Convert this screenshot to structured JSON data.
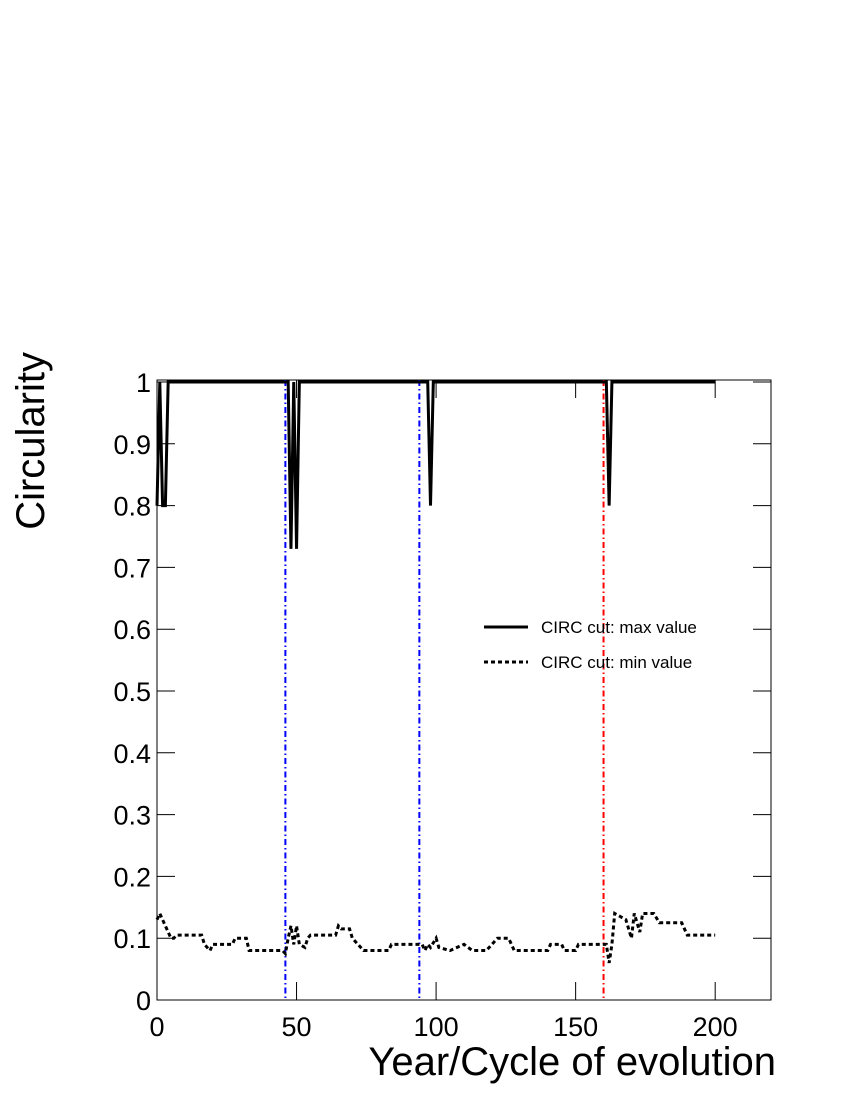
{
  "chart_data": {
    "type": "line",
    "y_label": "Circularity",
    "x_label": "Year/Cycle of evolution",
    "xlim": [
      0,
      220
    ],
    "ylim": [
      0,
      1
    ],
    "xticks": [
      0,
      50,
      100,
      150,
      200
    ],
    "yticks": [
      0,
      0.1,
      0.2,
      0.3,
      0.4,
      0.5,
      0.6,
      0.7,
      0.8,
      0.9,
      1
    ],
    "legend": "right",
    "series": [
      {
        "name": "CIRC cut: max value",
        "color": "#000000",
        "dash": "solid",
        "x": [
          0,
          1,
          2,
          3,
          4,
          47,
          48,
          49,
          50,
          51,
          97,
          98,
          99,
          161,
          162,
          163,
          200
        ],
        "values": [
          0.8,
          1,
          0.8,
          0.8,
          1,
          1,
          0.73,
          1,
          0.73,
          1,
          1,
          0.8,
          1,
          1,
          0.8,
          1,
          1
        ]
      },
      {
        "name": "CIRC cut: min value",
        "color": "#000000",
        "dash": "dashed",
        "x": [
          0,
          1,
          2,
          3,
          5,
          6,
          7,
          16,
          17,
          19,
          20,
          27,
          28,
          32,
          33,
          45,
          46,
          47,
          48,
          49,
          50,
          51,
          53,
          54,
          55,
          64,
          65,
          66,
          69,
          70,
          72,
          74,
          83,
          84,
          95,
          96,
          97,
          98,
          100,
          101,
          105,
          110,
          113,
          118,
          122,
          126,
          128,
          140,
          141,
          145,
          146,
          150,
          151,
          160,
          161,
          162,
          163,
          164,
          168,
          170,
          171,
          173,
          174,
          178,
          180,
          188,
          190,
          200
        ],
        "values": [
          0.13,
          0.14,
          0.13,
          0.12,
          0.1,
          0.1,
          0.105,
          0.105,
          0.09,
          0.08,
          0.09,
          0.09,
          0.1,
          0.1,
          0.08,
          0.08,
          0.075,
          0.1,
          0.12,
          0.09,
          0.12,
          0.09,
          0.085,
          0.1,
          0.105,
          0.105,
          0.12,
          0.115,
          0.115,
          0.1,
          0.09,
          0.08,
          0.08,
          0.09,
          0.09,
          0.08,
          0.09,
          0.085,
          0.1,
          0.085,
          0.08,
          0.09,
          0.08,
          0.08,
          0.1,
          0.1,
          0.08,
          0.08,
          0.09,
          0.09,
          0.08,
          0.08,
          0.09,
          0.09,
          0.09,
          0.06,
          0.09,
          0.14,
          0.13,
          0.1,
          0.14,
          0.11,
          0.14,
          0.14,
          0.125,
          0.125,
          0.105,
          0.105
        ]
      }
    ],
    "vlines": [
      {
        "x": 46,
        "color": "#0000ff"
      },
      {
        "x": 94,
        "color": "#0000ff"
      },
      {
        "x": 160,
        "color": "#ff0000"
      }
    ]
  }
}
